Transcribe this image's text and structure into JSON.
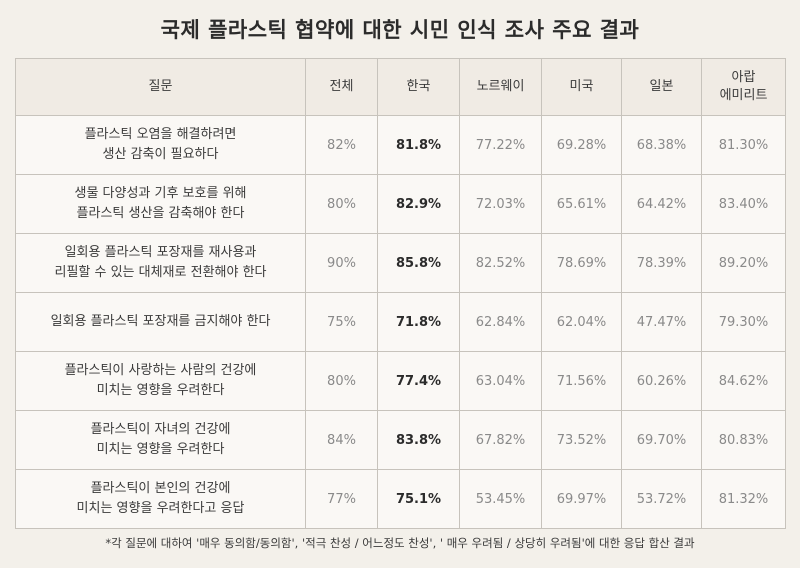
{
  "title": "국제 플라스틱 협약에 대한 시민 인식 조사 주요 결과",
  "footnote": "*각 질문에 대하여 '매우 동의함/동의함', '적극 찬성 / 어느정도 찬성', ' 매우 우려됨 / 상당히 우려됨'에 대한 응답 합산 결과",
  "chart_data": {
    "type": "table",
    "title": "국제 플라스틱 협약에 대한 시민 인식 조사 주요 결과",
    "columns": [
      "질문",
      "전체",
      "한국",
      "노르웨이",
      "미국",
      "일본",
      "아랍\n에미리트"
    ],
    "highlight_color": "#2b2b2b",
    "rows": [
      {
        "question": "플라스틱 오염을 해결하려면\n생산 감축이 필요하다",
        "values": [
          "82%",
          "81.8%",
          "77.22%",
          "69.28%",
          "68.38%",
          "81.30%"
        ]
      },
      {
        "question": "생물 다양성과 기후 보호를 위해\n플라스틱 생산을 감축해야 한다",
        "values": [
          "80%",
          "82.9%",
          "72.03%",
          "65.61%",
          "64.42%",
          "83.40%"
        ]
      },
      {
        "question": "일회용 플라스틱 포장재를 재사용과\n리필할 수 있는 대체재로 전환해야 한다",
        "values": [
          "90%",
          "85.8%",
          "82.52%",
          "78.69%",
          "78.39%",
          "89.20%"
        ]
      },
      {
        "question": "일회용 플라스틱 포장재를 금지해야 한다",
        "values": [
          "75%",
          "71.8%",
          "62.84%",
          "62.04%",
          "47.47%",
          "79.30%"
        ]
      },
      {
        "question": "플라스틱이 사랑하는 사람의 건강에\n미치는 영향을 우려한다",
        "values": [
          "80%",
          "77.4%",
          "63.04%",
          "71.56%",
          "60.26%",
          "84.62%"
        ]
      },
      {
        "question": "플라스틱이 자녀의 건강에\n미치는 영향을 우려한다",
        "values": [
          "84%",
          "83.8%",
          "67.82%",
          "73.52%",
          "69.70%",
          "80.83%"
        ]
      },
      {
        "question": "플라스틱이 본인의 건강에\n미치는 영향을 우려한다고 응답",
        "values": [
          "77%",
          "75.1%",
          "53.45%",
          "69.97%",
          "53.72%",
          "81.32%"
        ]
      }
    ]
  }
}
